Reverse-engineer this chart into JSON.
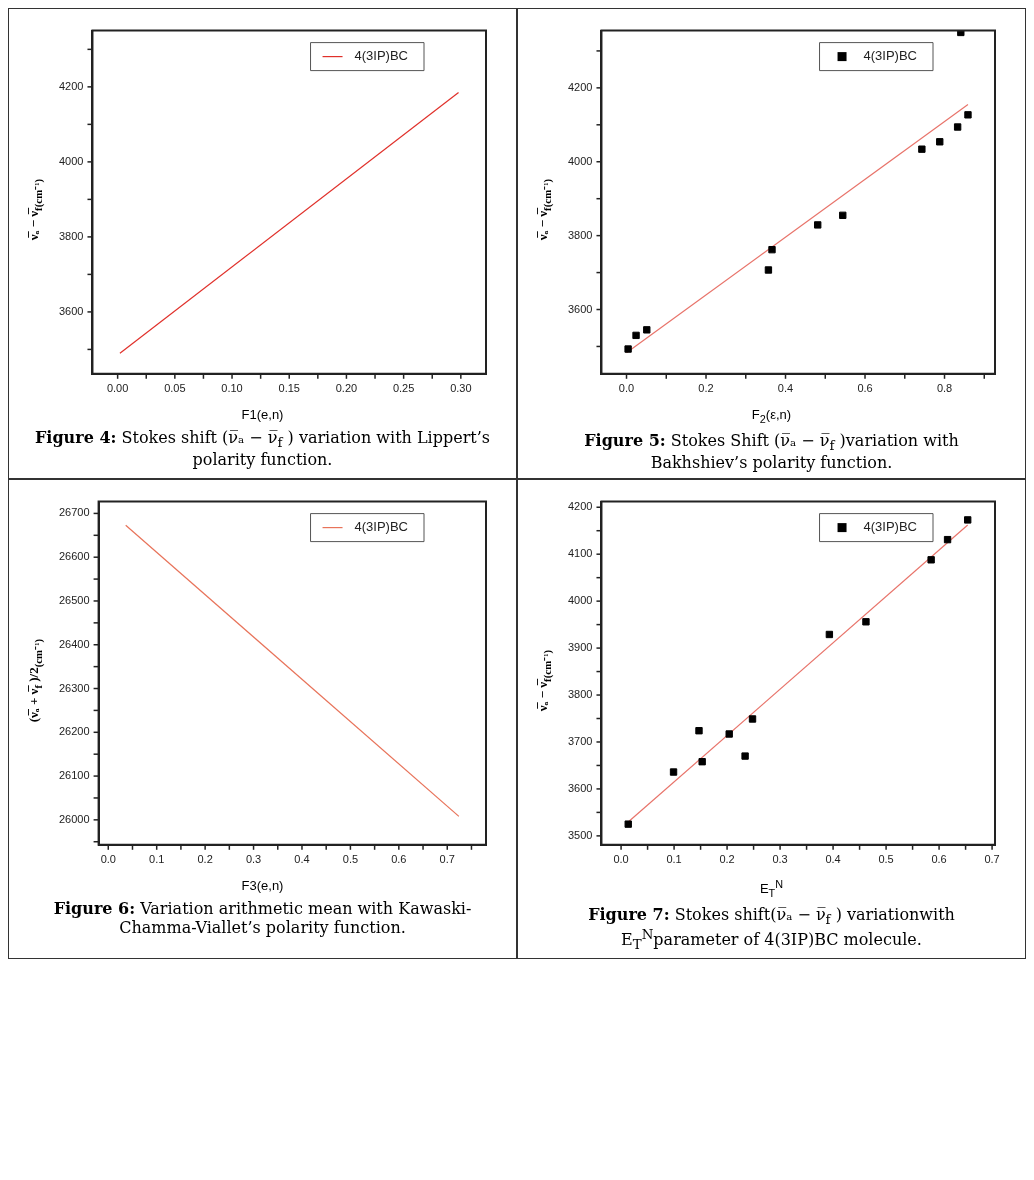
{
  "chart_data": [
    {
      "type": "line",
      "xlabel": "F1(e,n)",
      "ylabel": "ν̅ₐ − ν̅$_{f(cm⁻¹)}$",
      "legend": "top right",
      "annotations": [
        "Figure 4: Stokes shift (ν̅ₐ − ν̅$_{f}$ ) variation with Lippert’s polarity function."
      ],
      "series": [
        {
          "name": "4(3IP)BC",
          "color": "#e0302a",
          "x": [
            0.002,
            0.298
          ],
          "values": [
            3490,
            4185
          ]
        }
      ],
      "xlim": [
        -0.022,
        0.322
      ],
      "xticks": [
        {
          "value": 0,
          "label": "0.00"
        },
        {
          "value": 0.025,
          "label": null
        },
        {
          "value": 0.05,
          "label": "0.05"
        },
        {
          "value": 0.075,
          "label": null
        },
        {
          "value": 0.1,
          "label": "0.10"
        },
        {
          "value": 0.125,
          "label": null
        },
        {
          "value": 0.15,
          "label": "0.15"
        },
        {
          "value": 0.175,
          "label": null
        },
        {
          "value": 0.2,
          "label": "0.20"
        },
        {
          "value": 0.225,
          "label": null
        },
        {
          "value": 0.25,
          "label": "0.25"
        },
        {
          "value": 0.275,
          "label": null
        },
        {
          "value": 0.3,
          "label": "0.30"
        }
      ],
      "ylim": [
        3435,
        4350
      ],
      "yticks": [
        {
          "value": 3500,
          "label": null
        },
        3600,
        {
          "value": 3700,
          "label": null
        },
        3800,
        {
          "value": 3900,
          "label": null
        },
        4000,
        {
          "value": 4100,
          "label": null
        },
        4200,
        {
          "value": 4300,
          "label": null
        }
      ]
    },
    {
      "type": "scatter",
      "xlabel": "F$_{2}$(ε,n)",
      "ylabel": "ν̅ₐ − ν̅$_{f(cm⁻¹)}$",
      "legend": "top right",
      "marker": "square",
      "annotations": [
        "Figure 5: Stokes Shift (ν̅ₐ − ν̅$_{f}$ )variation with Bakhshiev’s polarity function."
      ],
      "series": [
        {
          "name": "4(3IP)BC",
          "color": "#000000",
          "x": [
            0.004,
            0.024,
            0.051,
            0.357,
            0.366,
            0.481,
            0.544,
            0.743,
            0.788,
            0.833,
            0.859,
            0.841
          ],
          "values": [
            3493,
            3530,
            3545,
            3707,
            3762,
            3829,
            3855,
            4034,
            4054,
            4094,
            4127,
            4350
          ]
        },
        {
          "type": "line",
          "marker": "none",
          "color": "#e8736a",
          "x": [
            0.0,
            0.859
          ],
          "values": [
            3483,
            4155
          ]
        }
      ],
      "xlim": [
        -0.063,
        0.927
      ],
      "xticks": [
        {
          "value": 0,
          "label": "0.0"
        },
        {
          "value": 0.1,
          "label": null
        },
        {
          "value": 0.2,
          "label": "0.2"
        },
        {
          "value": 0.3,
          "label": null
        },
        {
          "value": 0.4,
          "label": "0.4"
        },
        {
          "value": 0.5,
          "label": null
        },
        {
          "value": 0.6,
          "label": "0.6"
        },
        {
          "value": 0.7,
          "label": null
        },
        {
          "value": 0.8,
          "label": "0.8"
        },
        {
          "value": 0.9,
          "label": null
        }
      ],
      "ylim": [
        3426,
        4355
      ],
      "yticks": [
        {
          "value": 3500,
          "label": null
        },
        3600,
        {
          "value": 3700,
          "label": null
        },
        3800,
        {
          "value": 3900,
          "label": null
        },
        4000,
        {
          "value": 4100,
          "label": null
        },
        4200,
        {
          "value": 4300,
          "label": null
        }
      ]
    },
    {
      "type": "line",
      "xlabel": "F3(e,n)",
      "ylabel": "(ν̅ₐ + ν̅$_{f}$ )/2$_{(cm⁻¹)}$",
      "legend": "top right",
      "annotations": [
        "Figure 6: Variation arithmetic mean with Kawaski-Chamma-Viallet’s polarity function."
      ],
      "series": [
        {
          "name": "4(3IP)BC",
          "color": "#e8735a",
          "x": [
            0.036,
            0.724
          ],
          "values": [
            26673,
            26008
          ]
        }
      ],
      "xlim": [
        -0.02,
        0.78
      ],
      "xticks": [
        {
          "value": 0,
          "label": "0.0"
        },
        {
          "value": 0.05,
          "label": null
        },
        {
          "value": 0.1,
          "label": "0.1"
        },
        {
          "value": 0.15,
          "label": null
        },
        {
          "value": 0.2,
          "label": "0.2"
        },
        {
          "value": 0.25,
          "label": null
        },
        {
          "value": 0.3,
          "label": "0.3"
        },
        {
          "value": 0.35,
          "label": null
        },
        {
          "value": 0.4,
          "label": "0.4"
        },
        {
          "value": 0.45,
          "label": null
        },
        {
          "value": 0.5,
          "label": "0.5"
        },
        {
          "value": 0.55,
          "label": null
        },
        {
          "value": 0.6,
          "label": "0.6"
        },
        {
          "value": 0.65,
          "label": null
        },
        {
          "value": 0.7,
          "label": "0.7"
        },
        {
          "value": 0.75,
          "label": null
        }
      ],
      "ylim": [
        25943,
        26727
      ],
      "yticks": [
        {
          "value": 25950,
          "label": null
        },
        26000,
        {
          "value": 26050,
          "label": null
        },
        26100,
        {
          "value": 26150,
          "label": null
        },
        26200,
        {
          "value": 26250,
          "label": null
        },
        26300,
        {
          "value": 26350,
          "label": null
        },
        26400,
        {
          "value": 26450,
          "label": null
        },
        26500,
        {
          "value": 26550,
          "label": null
        },
        26600,
        {
          "value": 26650,
          "label": null
        },
        26700
      ]
    },
    {
      "type": "scatter",
      "xlabel": "E$_{T}$$^{N}$",
      "ylabel": "ν̅ₐ − ν̅$_{f(cm⁻¹)}$",
      "legend": "top right",
      "marker": "square",
      "annotations": [
        "Figure 7: Stokes shift(ν̅ₐ − ν̅$_{f}$ ) variationwith E$_{T}$$^{N}$parameter of 4(3IP)BC molecule."
      ],
      "series": [
        {
          "name": "4(3IP)BC",
          "color": "#000000",
          "x": [
            0.0135,
            0.099,
            0.147,
            0.153,
            0.204,
            0.234,
            0.248,
            0.393,
            0.462,
            0.585,
            0.616,
            0.654
          ],
          "values": [
            3525,
            3636,
            3724,
            3658,
            3717,
            3670,
            3749,
            3929,
            3956,
            4088,
            4131,
            4173
          ]
        },
        {
          "type": "line",
          "marker": "none",
          "color": "#e8736a",
          "x": [
            0.015,
            0.654
          ],
          "values": [
            3531,
            4162
          ]
        }
      ],
      "xlim": [
        -0.037,
        0.7055
      ],
      "xticks": [
        {
          "value": 0,
          "label": "0.0"
        },
        {
          "value": 0.05,
          "label": null
        },
        {
          "value": 0.1,
          "label": "0.1"
        },
        {
          "value": 0.15,
          "label": null
        },
        {
          "value": 0.2,
          "label": "0.2"
        },
        {
          "value": 0.25,
          "label": null
        },
        {
          "value": 0.3,
          "label": "0.3"
        },
        {
          "value": 0.35,
          "label": null
        },
        {
          "value": 0.4,
          "label": "0.4"
        },
        {
          "value": 0.45,
          "label": null
        },
        {
          "value": 0.5,
          "label": "0.5"
        },
        {
          "value": 0.55,
          "label": null
        },
        {
          "value": 0.6,
          "label": "0.6"
        },
        {
          "value": 0.65,
          "label": null
        },
        {
          "value": 0.7,
          "label": "0.7"
        }
      ],
      "ylim": [
        3481,
        4212
      ],
      "yticks": [
        3500,
        {
          "value": 3550,
          "label": null
        },
        3600,
        {
          "value": 3650,
          "label": null
        },
        3700,
        {
          "value": 3750,
          "label": null
        },
        3800,
        {
          "value": 3850,
          "label": null
        },
        3900,
        {
          "value": 3950,
          "label": null
        },
        4000,
        {
          "value": 4050,
          "label": null
        },
        4100,
        {
          "value": 4150,
          "label": null
        },
        4200
      ]
    }
  ]
}
